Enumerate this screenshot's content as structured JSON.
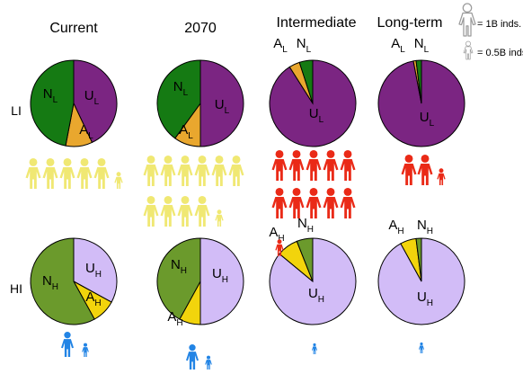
{
  "headers": {
    "current": "Current",
    "y2070": "2070",
    "intermediate": "Intermediate",
    "longterm": "Long-term"
  },
  "rows": {
    "li": "LI",
    "hi": "HI"
  },
  "legend": {
    "full": "= 1B inds.",
    "half": "= 0.5B inds."
  },
  "segment_labels": {
    "N": "N",
    "U": "U",
    "A": "A",
    "li_sub": "L",
    "hi_sub": "H"
  },
  "colors": {
    "LI": {
      "U": "#7b2582",
      "A": "#e9a72e",
      "N": "#157a13"
    },
    "HI": {
      "U": "#d2bcf7",
      "A": "#f2d40c",
      "N": "#6b9a2c"
    },
    "people": {
      "LI_current": "#f0e873",
      "LI_future": "#ea2a17",
      "HI": "#2284e5",
      "legend": "#ffffff"
    }
  },
  "chart_data": {
    "type": "pie",
    "panels": [
      {
        "row": "LI",
        "scenario": "Current",
        "U": 0.43,
        "A": 0.1,
        "N": 0.47,
        "population_billion": 5.5
      },
      {
        "row": "LI",
        "scenario": "2070",
        "U": 0.5,
        "A": 0.1,
        "N": 0.4,
        "population_billion": 10.5
      },
      {
        "row": "LI",
        "scenario": "Intermediate",
        "U": 0.91,
        "A": 0.04,
        "N": 0.05,
        "population_billion": 10.5
      },
      {
        "row": "LI",
        "scenario": "Long-term",
        "U": 0.97,
        "A": 0.01,
        "N": 0.02,
        "population_billion": 2.5
      },
      {
        "row": "HI",
        "scenario": "Current",
        "U": 0.33,
        "A": 0.09,
        "N": 0.58,
        "population_billion": 1.5
      },
      {
        "row": "HI",
        "scenario": "2070",
        "U": 0.5,
        "A": 0.08,
        "N": 0.42,
        "population_billion": 1.5
      },
      {
        "row": "HI",
        "scenario": "Intermediate",
        "U": 0.86,
        "A": 0.08,
        "N": 0.06,
        "population_billion": 0.5
      },
      {
        "row": "HI",
        "scenario": "Long-term",
        "U": 0.92,
        "A": 0.06,
        "N": 0.02,
        "population_billion": 0.5
      }
    ]
  }
}
